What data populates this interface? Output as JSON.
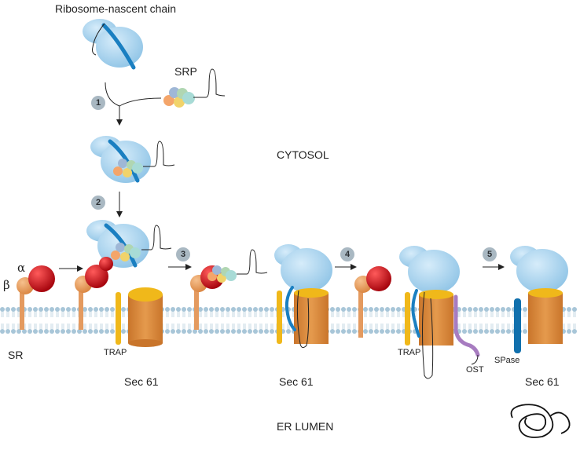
{
  "labels": {
    "ribosome_nascent_chain": "Ribosome-nascent chain",
    "srp": "SRP",
    "cytosol": "CYTOSOL",
    "er_lumen": "ER LUMEN",
    "alpha": "α",
    "beta": "β",
    "sr": "SR",
    "trap_1": "TRAP",
    "trap_2": "TRAP",
    "ost": "OST",
    "spase": "SPase",
    "sec61_1": "Sec 61",
    "sec61_2": "Sec 61",
    "sec61_3": "Sec 61"
  },
  "steps": [
    "1",
    "2",
    "3",
    "4",
    "5"
  ],
  "colors": {
    "ribosome": "#a9d4ef",
    "ribosome_outline": "#7fb6d9",
    "signal_sequence": "#1a7fc1",
    "sr_body": "#e49a5f",
    "sr_alpha": "#c8111b",
    "trap": "#f0b81a",
    "sec61": "#dc8f3e",
    "ost": "#a77cc0",
    "spase": "#1170ad",
    "membrane_head": "#a8c6d8",
    "membrane_tail": "#c9d9e3",
    "step_badge": "#a9b8c2"
  }
}
